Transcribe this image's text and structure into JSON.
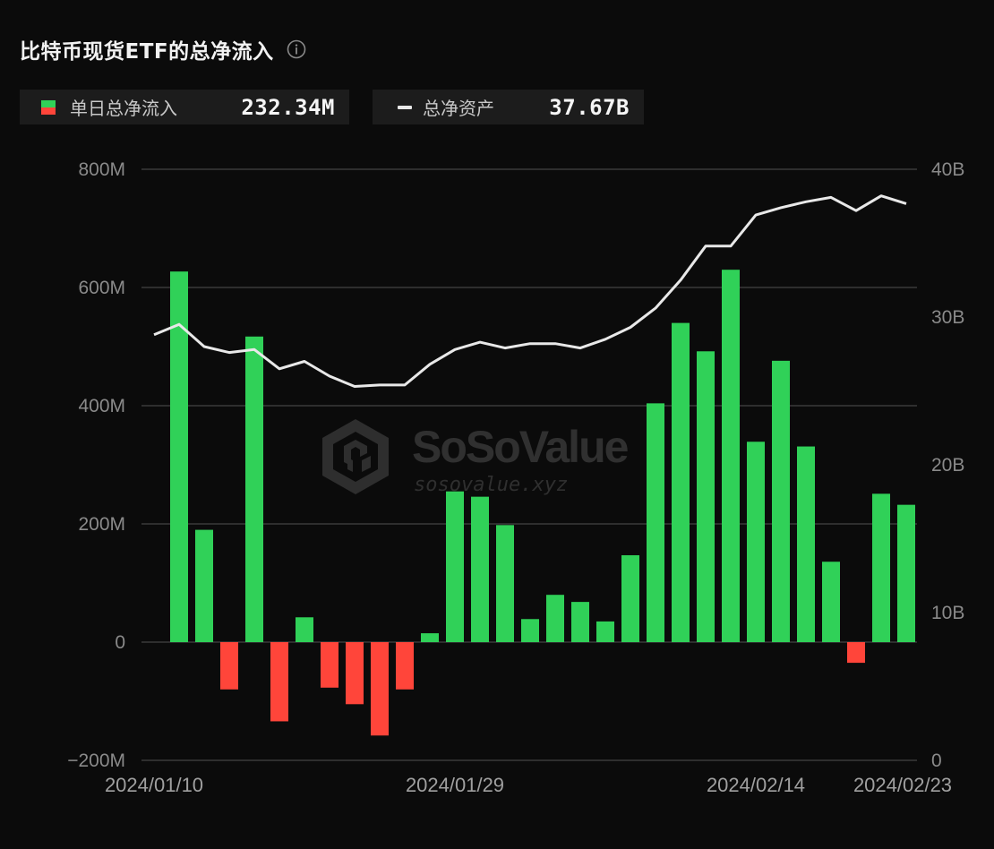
{
  "header": {
    "title": "比特币现货ETF的总净流入",
    "info_icon": "info-circle-icon"
  },
  "legend": {
    "daily": {
      "label": "单日总净流入",
      "value": "232.34M",
      "icon": "green-red-square-icon"
    },
    "total": {
      "label": "总净资产",
      "value": "37.67B",
      "icon": "line-dash-icon"
    }
  },
  "watermark": {
    "brand": "SoSoValue",
    "url": "sosovalue.xyz"
  },
  "colors": {
    "positive": "#30d158",
    "negative": "#ff453a",
    "line": "#e8e8e8",
    "grid": "#3a3a3a",
    "background": "#0b0b0b",
    "legend_bg": "#1c1c1c"
  },
  "chart_data": {
    "type": "bar+line",
    "title": "比特币现货ETF的总净流入",
    "x": [
      "2024/01/10",
      "2024/01/11",
      "2024/01/12",
      "2024/01/16",
      "2024/01/17",
      "2024/01/18",
      "2024/01/19",
      "2024/01/22",
      "2024/01/23",
      "2024/01/24",
      "2024/01/25",
      "2024/01/26",
      "2024/01/29",
      "2024/01/30",
      "2024/01/31",
      "2024/02/01",
      "2024/02/02",
      "2024/02/05",
      "2024/02/06",
      "2024/02/07",
      "2024/02/08",
      "2024/02/09",
      "2024/02/12",
      "2024/02/13",
      "2024/02/14",
      "2024/02/15",
      "2024/02/16",
      "2024/02/20",
      "2024/02/21",
      "2024/02/22",
      "2024/02/23"
    ],
    "x_tick_labels": [
      "2024/01/10",
      "2024/01/29",
      "2024/02/14",
      "2024/02/23"
    ],
    "x_tick_indices": [
      0,
      12,
      24,
      30
    ],
    "series": [
      {
        "name": "单日总净流入",
        "type": "bar",
        "axis": "left",
        "unit": "M",
        "values": [
          0,
          627,
          190,
          -80,
          517,
          -134,
          42,
          -77,
          -105,
          -158,
          -80,
          15,
          255,
          246,
          198,
          39,
          80,
          68,
          35,
          147,
          404,
          540,
          492,
          630,
          339,
          476,
          331,
          136,
          -35,
          251,
          232.34
        ]
      },
      {
        "name": "总净资产",
        "type": "line",
        "axis": "right",
        "unit": "B",
        "values": [
          28.8,
          29.5,
          28.0,
          27.6,
          27.8,
          26.5,
          27.0,
          26.0,
          25.3,
          25.4,
          25.4,
          26.8,
          27.8,
          28.3,
          27.9,
          28.2,
          28.2,
          27.9,
          28.5,
          29.3,
          30.6,
          32.5,
          34.8,
          34.8,
          36.9,
          37.4,
          37.8,
          38.1,
          37.2,
          38.2,
          37.67
        ]
      }
    ],
    "left_axis": {
      "ticks": [
        800,
        600,
        400,
        200,
        0,
        -200
      ],
      "labels": [
        "800M",
        "600M",
        "400M",
        "200M",
        "0",
        "−200M"
      ],
      "ylim": [
        -200,
        800
      ]
    },
    "right_axis": {
      "ticks": [
        40,
        30,
        20,
        10,
        0
      ],
      "labels": [
        "40B",
        "30B",
        "20B",
        "10B",
        "0"
      ],
      "ylim": [
        0,
        40
      ]
    },
    "grid": true,
    "legend_position": "top"
  }
}
